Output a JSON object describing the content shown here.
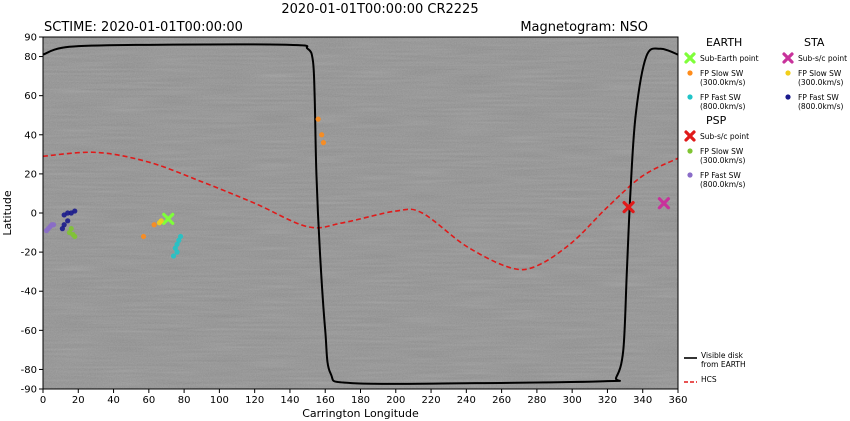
{
  "header": {
    "title": "2020-01-01T00:00:00 CR2225",
    "sctime": "SCTIME: 2020-01-01T00:00:00",
    "magnetogram": "Magnetogram: NSO"
  },
  "legend": {
    "earth": {
      "title": "EARTH",
      "items": [
        {
          "label": "Sub-Earth point",
          "color": "#7fff3a",
          "marker": "x"
        },
        {
          "label": "FP Slow SW\n(300.0km/s)",
          "color": "#ff8c1a",
          "marker": "dot"
        },
        {
          "label": "FP Fast SW\n(800.0km/s)",
          "color": "#20c4c8",
          "marker": "dot"
        }
      ]
    },
    "sta": {
      "title": "STA",
      "items": [
        {
          "label": "Sub-s/c point",
          "color": "#c8329b",
          "marker": "x"
        },
        {
          "label": "FP Slow SW\n(300.0km/s)",
          "color": "#f2cf1a",
          "marker": "dot"
        },
        {
          "label": "FP Fast SW\n(800.0km/s)",
          "color": "#1a1a8c",
          "marker": "dot"
        }
      ]
    },
    "psp": {
      "title": "PSP",
      "items": [
        {
          "label": "Sub-s/c point",
          "color": "#e01a1a",
          "marker": "x"
        },
        {
          "label": "FP Slow SW\n(300.0km/s)",
          "color": "#7fc432",
          "marker": "dot"
        },
        {
          "label": "FP Fast SW\n(800.0km/s)",
          "color": "#8a6cc8",
          "marker": "dot"
        }
      ]
    },
    "lines": [
      {
        "label": "Visible disk\nfrom EARTH",
        "color": "#000000",
        "style": "solid"
      },
      {
        "label": "HCS",
        "color": "#e01a1a",
        "style": "dashed"
      }
    ]
  },
  "chart_data": {
    "type": "scatter",
    "xlabel": "Carrington Longitude",
    "ylabel": "Latitude",
    "xlim": [
      0,
      360
    ],
    "ylim": [
      -90,
      90
    ],
    "xticks": [
      0,
      20,
      40,
      60,
      80,
      100,
      120,
      140,
      160,
      180,
      200,
      220,
      240,
      260,
      280,
      300,
      320,
      340,
      360
    ],
    "yticks": [
      90,
      80,
      60,
      40,
      20,
      0,
      -20,
      -40,
      -60,
      -80,
      -90
    ],
    "background": "grayscale magnetogram",
    "grid": false,
    "series": [
      {
        "name": "Sub-Earth point",
        "color": "#7fff3a",
        "marker": "x",
        "points": [
          [
            71,
            -3
          ]
        ]
      },
      {
        "name": "Sub-s/c point (PSP)",
        "color": "#e01a1a",
        "marker": "x",
        "points": [
          [
            332,
            3
          ]
        ]
      },
      {
        "name": "Sub-s/c point (STA)",
        "color": "#c8329b",
        "marker": "x",
        "points": [
          [
            352,
            5
          ]
        ]
      },
      {
        "name": "EARTH FP Slow SW (300.0km/s)",
        "color": "#ff8c1a",
        "marker": "dot",
        "points": [
          [
            57,
            -12
          ],
          [
            63,
            -6
          ],
          [
            156,
            48
          ],
          [
            158,
            40
          ],
          [
            159,
            36
          ]
        ]
      },
      {
        "name": "EARTH FP Fast SW (800.0km/s)",
        "color": "#20c4c8",
        "marker": "dot",
        "points": [
          [
            74,
            -22
          ],
          [
            75,
            -18
          ],
          [
            76,
            -16
          ],
          [
            77,
            -14
          ],
          [
            78,
            -12
          ],
          [
            76,
            -20
          ]
        ]
      },
      {
        "name": "STA FP Slow SW (300.0km/s)",
        "color": "#f2cf1a",
        "marker": "dot",
        "points": [
          [
            66,
            -5
          ],
          [
            67,
            -4
          ]
        ]
      },
      {
        "name": "STA FP Fast SW (800.0km/s)",
        "color": "#1a1a8c",
        "marker": "dot",
        "points": [
          [
            12,
            -1
          ],
          [
            14,
            0
          ],
          [
            16,
            0
          ],
          [
            18,
            1
          ],
          [
            14,
            -4
          ],
          [
            11,
            -8
          ],
          [
            12,
            -6
          ]
        ]
      },
      {
        "name": "PSP FP Slow SW (300.0km/s)",
        "color": "#7fc432",
        "marker": "dot",
        "points": [
          [
            15,
            -10
          ],
          [
            17,
            -11
          ],
          [
            18,
            -12
          ],
          [
            16,
            -8
          ]
        ]
      },
      {
        "name": "PSP FP Fast SW (800.0km/s)",
        "color": "#8a6cc8",
        "marker": "dot",
        "points": [
          [
            2,
            -9
          ],
          [
            3,
            -8
          ],
          [
            4,
            -7
          ],
          [
            5,
            -6
          ],
          [
            6,
            -6
          ]
        ]
      },
      {
        "name": "HCS",
        "color": "#e01a1a",
        "style": "dashed",
        "points": [
          [
            0,
            29
          ],
          [
            30,
            31
          ],
          [
            60,
            26
          ],
          [
            90,
            16
          ],
          [
            120,
            5
          ],
          [
            150,
            -7
          ],
          [
            170,
            -5
          ],
          [
            200,
            1
          ],
          [
            215,
            0
          ],
          [
            240,
            -17
          ],
          [
            265,
            -28
          ],
          [
            280,
            -27
          ],
          [
            300,
            -15
          ],
          [
            320,
            3
          ],
          [
            340,
            19
          ],
          [
            360,
            28
          ]
        ]
      },
      {
        "name": "Visible disk from EARTH",
        "color": "#000000",
        "style": "solid",
        "points": [
          [
            0,
            81
          ],
          [
            15,
            85
          ],
          [
            60,
            86
          ],
          [
            140,
            86
          ],
          [
            150,
            84
          ],
          [
            153,
            78
          ],
          [
            154,
            60
          ],
          [
            155,
            20
          ],
          [
            157,
            -20
          ],
          [
            160,
            -60
          ],
          [
            163,
            -82
          ],
          [
            175,
            -87
          ],
          [
            245,
            -87
          ],
          [
            320,
            -86
          ],
          [
            325,
            -84
          ],
          [
            329,
            -70
          ],
          [
            331,
            -30
          ],
          [
            333,
            10
          ],
          [
            336,
            50
          ],
          [
            342,
            80
          ],
          [
            350,
            84
          ],
          [
            360,
            81
          ]
        ]
      }
    ]
  }
}
